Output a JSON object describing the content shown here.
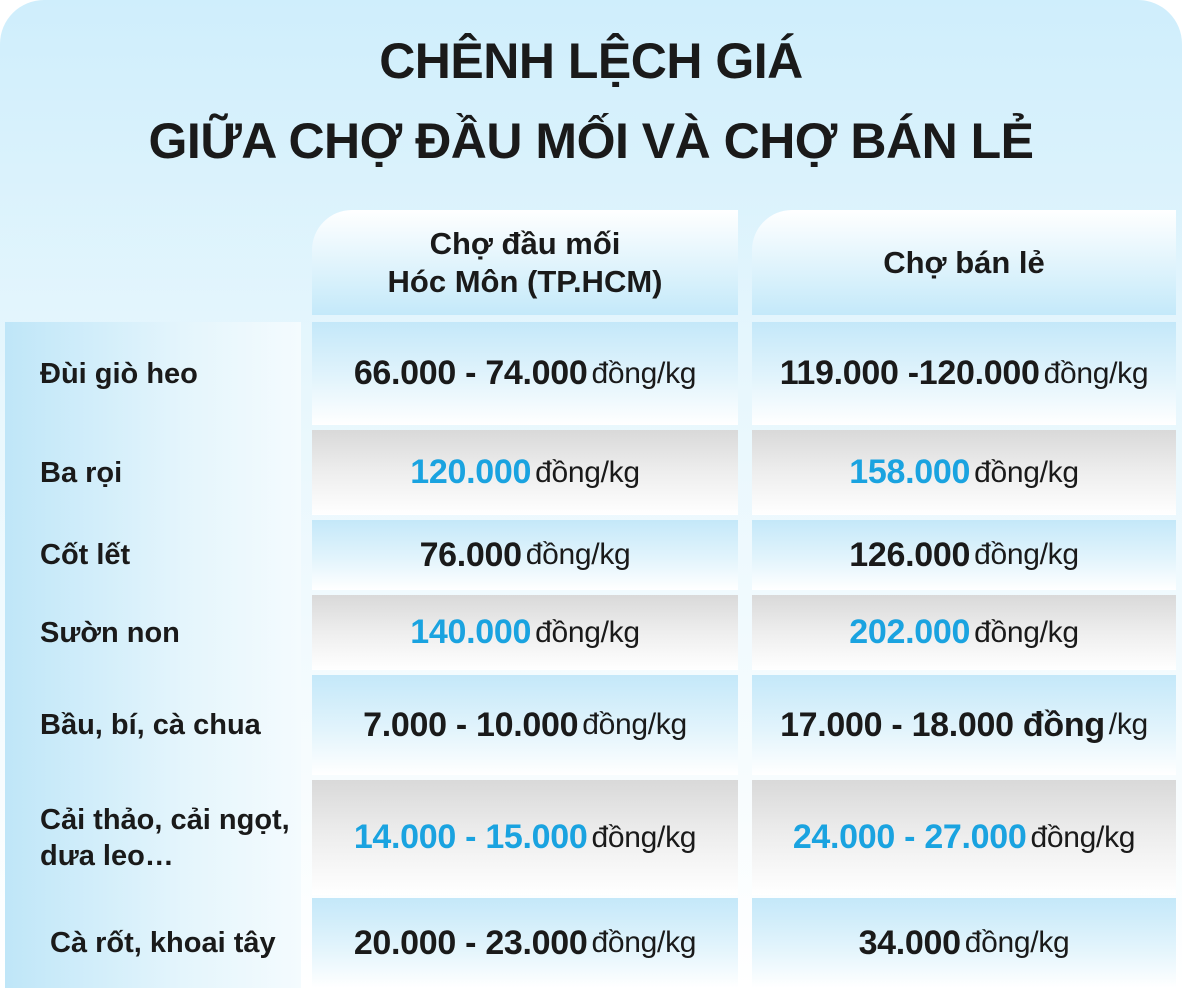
{
  "title": {
    "lines": [
      "CHÊNH LỆCH GIÁ",
      "GIỮA CHỢ ĐẦU MỐI VÀ CHỢ BÁN LẺ"
    ]
  },
  "columns": [
    {
      "lines": [
        "Chợ đầu mối",
        "Hóc Môn (TP.HCM)"
      ]
    },
    {
      "lines": [
        "Chợ bán lẻ"
      ]
    }
  ],
  "rows": [
    {
      "label": "Đùi giò heo",
      "cells": [
        {
          "price": "66.000 - 74.000",
          "unit": "đồng/kg"
        },
        {
          "price": "119.000 -120.000",
          "unit": "đồng/kg"
        }
      ]
    },
    {
      "label": "Ba rọi",
      "cells": [
        {
          "price": "120.000",
          "unit": "đồng/kg"
        },
        {
          "price": "158.000",
          "unit": "đồng/kg"
        }
      ]
    },
    {
      "label": "Cốt lết",
      "cells": [
        {
          "price": "76.000",
          "unit": "đồng/kg"
        },
        {
          "price": "126.000",
          "unit": "đồng/kg"
        }
      ]
    },
    {
      "label": "Sườn non",
      "cells": [
        {
          "price": "140.000",
          "unit": "đồng/kg"
        },
        {
          "price": "202.000",
          "unit": "đồng/kg"
        }
      ]
    },
    {
      "label": "Bầu, bí, cà chua",
      "cells": [
        {
          "price": "7.000 - 10.000",
          "unit": "đồng/kg"
        },
        {
          "price": "17.000 - 18.000 đồng",
          "unit": "/kg"
        }
      ]
    },
    {
      "label": "Cải thảo, cải ngọt, dưa leo…",
      "cells": [
        {
          "price": "14.000 - 15.000",
          "unit": "đồng/kg"
        },
        {
          "price": "24.000 - 27.000",
          "unit": "đồng/kg"
        }
      ]
    },
    {
      "label": "Cà rốt, khoai tây",
      "cells": [
        {
          "price": "20.000 - 23.000",
          "unit": "đồng/kg"
        },
        {
          "price": "34.000",
          "unit": "đồng/kg"
        }
      ]
    }
  ]
}
